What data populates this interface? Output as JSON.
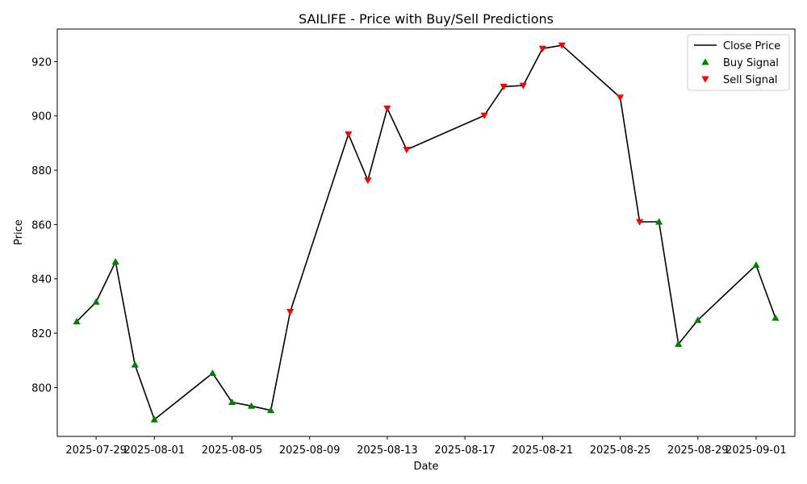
{
  "chart_data": {
    "type": "line",
    "title": "SAILIFE - Price with Buy/Sell Predictions",
    "xlabel": "Date",
    "ylabel": "Price",
    "xlim": [
      "2025-07-27",
      "2025-09-03"
    ],
    "ylim": [
      782,
      932
    ],
    "x_ticks": [
      "2025-07-29",
      "2025-08-01",
      "2025-08-05",
      "2025-08-09",
      "2025-08-13",
      "2025-08-17",
      "2025-08-21",
      "2025-08-25",
      "2025-08-29",
      "2025-09-01"
    ],
    "y_ticks": [
      800,
      820,
      840,
      860,
      880,
      900,
      920
    ],
    "legend_position": "top-right",
    "grid": false,
    "series": [
      {
        "name": "Close Price",
        "kind": "line",
        "color": "#000000",
        "points": [
          [
            "2025-07-28",
            824.3
          ],
          [
            "2025-07-29",
            831.5
          ],
          [
            "2025-07-30",
            846.3
          ],
          [
            "2025-07-31",
            808.4
          ],
          [
            "2025-08-01",
            788.2
          ],
          [
            "2025-08-04",
            805.3
          ],
          [
            "2025-08-05",
            794.6
          ],
          [
            "2025-08-06",
            793.2
          ],
          [
            "2025-08-07",
            791.6
          ],
          [
            "2025-08-08",
            827.9
          ],
          [
            "2025-08-11",
            893.3
          ],
          [
            "2025-08-12",
            876.3
          ],
          [
            "2025-08-13",
            902.8
          ],
          [
            "2025-08-14",
            887.6
          ],
          [
            "2025-08-18",
            900.2
          ],
          [
            "2025-08-19",
            910.8
          ],
          [
            "2025-08-20",
            911.2
          ],
          [
            "2025-08-21",
            924.8
          ],
          [
            "2025-08-22",
            926.0
          ],
          [
            "2025-08-25",
            906.8
          ],
          [
            "2025-08-26",
            861.0
          ],
          [
            "2025-08-27",
            861.0
          ],
          [
            "2025-08-28",
            816.0
          ],
          [
            "2025-08-29",
            824.8
          ],
          [
            "2025-09-01",
            845.1
          ],
          [
            "2025-09-02",
            825.6
          ]
        ]
      },
      {
        "name": "Buy Signal",
        "kind": "scatter",
        "marker": "triangle-up",
        "color": "#008000",
        "points": [
          [
            "2025-07-28",
            824.3
          ],
          [
            "2025-07-29",
            831.5
          ],
          [
            "2025-07-30",
            846.3
          ],
          [
            "2025-07-31",
            808.4
          ],
          [
            "2025-08-01",
            788.2
          ],
          [
            "2025-08-04",
            805.3
          ],
          [
            "2025-08-05",
            794.6
          ],
          [
            "2025-08-06",
            793.2
          ],
          [
            "2025-08-07",
            791.6
          ],
          [
            "2025-08-27",
            861.0
          ],
          [
            "2025-08-28",
            816.0
          ],
          [
            "2025-08-29",
            824.8
          ],
          [
            "2025-09-01",
            845.1
          ],
          [
            "2025-09-02",
            825.6
          ]
        ]
      },
      {
        "name": "Sell Signal",
        "kind": "scatter",
        "marker": "triangle-down",
        "color": "#ff0000",
        "points": [
          [
            "2025-08-08",
            827.9
          ],
          [
            "2025-08-11",
            893.3
          ],
          [
            "2025-08-12",
            876.3
          ],
          [
            "2025-08-13",
            902.8
          ],
          [
            "2025-08-14",
            887.6
          ],
          [
            "2025-08-18",
            900.2
          ],
          [
            "2025-08-19",
            910.8
          ],
          [
            "2025-08-20",
            911.2
          ],
          [
            "2025-08-21",
            924.8
          ],
          [
            "2025-08-22",
            926.0
          ],
          [
            "2025-08-25",
            906.8
          ],
          [
            "2025-08-26",
            861.0
          ]
        ]
      }
    ]
  }
}
